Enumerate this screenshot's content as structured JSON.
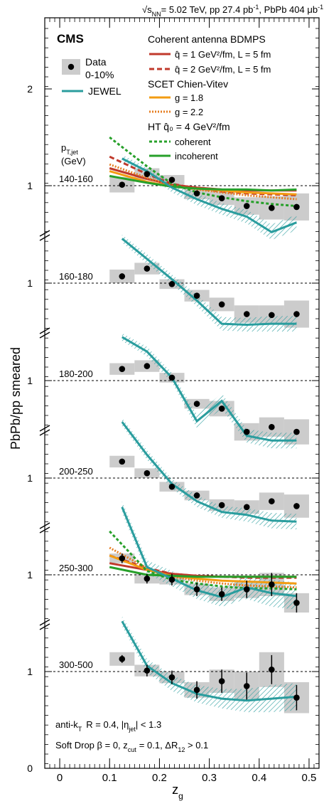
{
  "chart_data": {
    "type": "line",
    "energy_label": "= 5.02 TeV, pp 27.4 pb",
    "energy_root": "s",
    "energy_sub": "NN",
    "energy_sup": "-1",
    "lumi_label": ", PbPb 404 μb",
    "lumi_sup": "-1",
    "experiment": "CMS",
    "xlabel": "z",
    "xlabel_sub": "g",
    "ylabel": "PbPb/pp smeared",
    "xlim": [
      -0.03,
      0.52
    ],
    "x_ticks": [
      "0",
      "0.1",
      "0.2",
      "0.3",
      "0.4",
      "0.5"
    ],
    "y_ticks_left": [
      "0",
      "1",
      "1",
      "1",
      "1",
      "1",
      "1",
      "2"
    ],
    "pt_header": "p",
    "pt_header_sub": "T,jet",
    "pt_unit": "(GeV)",
    "jet_info": "anti-k",
    "jet_info_sub": "T",
    "jet_info_rest": "R = 0.4,  |η",
    "jet_info_sub2": "jet",
    "jet_info_end": "| < 1.3",
    "softdrop": "Soft Drop  β = 0,  z",
    "softdrop_sub": "cut",
    "softdrop_rest": "= 0.1,  ΔR",
    "softdrop_sub2": "12",
    "softdrop_end": " > 0.1",
    "legend": {
      "data_label": "Data",
      "data_sublabel": "0-10%",
      "jewel": "JEWEL",
      "coherent_title": "Coherent antenna BDMPS",
      "bdmps1": "q̂ = 1 GeV²/fm, L = 5 fm",
      "bdmps2": "q̂ = 2 GeV²/fm, L = 5 fm",
      "scet_title": "SCET Chien-Vitev",
      "scet1": "g = 1.8",
      "scet2": "g = 2.2",
      "ht_title": "HT q̂₀ = 4 GeV²/fm",
      "ht1": "coherent",
      "ht2": "incoherent"
    },
    "colors": {
      "data": "#000000",
      "syst_box": "#cccccc",
      "jewel": "#2a9d9e",
      "bdmps": "#c0392b",
      "scet": "#f39c12",
      "ht": "#27a02a"
    },
    "x_centers": [
      0.125,
      0.175,
      0.225,
      0.275,
      0.325,
      0.375,
      0.425,
      0.475
    ],
    "panels": [
      {
        "label": "140-160",
        "y_ref": 1,
        "data": [
          1.01,
          1.12,
          1.06,
          0.92,
          0.87,
          0.79,
          0.77,
          0.78
        ],
        "stat": [
          0.03,
          0.03,
          0.03,
          0.03,
          0.03,
          0.03,
          0.03,
          0.03
        ],
        "syst": [
          0.08,
          0.06,
          0.05,
          0.06,
          0.07,
          0.09,
          0.12,
          0.14
        ],
        "jewel": [
          1.28,
          1.15,
          0.98,
          0.86,
          0.76,
          0.68,
          0.52,
          0.62
        ],
        "jewel_band": [
          0.04,
          0.04,
          0.05,
          0.06,
          0.06,
          0.07,
          0.08,
          0.08
        ],
        "bdmps1": [
          1.18,
          1.07,
          1.01,
          0.98,
          0.96,
          0.95,
          0.95,
          0.95
        ],
        "bdmps2": [
          1.3,
          1.12,
          1.02,
          0.97,
          0.94,
          0.92,
          0.91,
          0.9
        ],
        "scet1": [
          1.15,
          1.04,
          0.99,
          0.97,
          0.95,
          0.93,
          0.92,
          0.91
        ],
        "scet2": [
          1.22,
          1.08,
          1.0,
          0.96,
          0.93,
          0.9,
          0.88,
          0.86
        ],
        "ht1": [
          1.5,
          1.2,
          1.02,
          0.93,
          0.88,
          0.84,
          0.81,
          0.79
        ],
        "ht2": [
          1.1,
          1.03,
          0.99,
          0.97,
          0.96,
          0.96,
          0.95,
          0.96
        ]
      },
      {
        "label": "160-180",
        "y_ref": 1,
        "data": [
          1.07,
          1.15,
          0.99,
          0.87,
          0.78,
          0.68,
          0.67,
          0.68
        ],
        "stat": [
          0.03,
          0.03,
          0.03,
          0.03,
          0.03,
          0.03,
          0.03,
          0.03
        ],
        "syst": [
          0.07,
          0.06,
          0.05,
          0.06,
          0.07,
          0.09,
          0.1,
          0.14
        ],
        "jewel": [
          1.46,
          1.25,
          1.04,
          0.82,
          0.58,
          0.57,
          0.58,
          0.58
        ],
        "jewel_band": [
          0.04,
          0.05,
          0.05,
          0.06,
          0.07,
          0.07,
          0.08,
          0.08
        ]
      },
      {
        "label": "180-200",
        "y_ref": 1,
        "data": [
          1.12,
          1.15,
          1.03,
          0.76,
          0.71,
          0.47,
          0.52,
          0.47
        ],
        "stat": [
          0.03,
          0.03,
          0.03,
          0.03,
          0.03,
          0.03,
          0.03,
          0.03
        ],
        "syst": [
          0.06,
          0.06,
          0.05,
          0.05,
          0.08,
          0.09,
          0.1,
          0.13
        ],
        "jewel": [
          1.45,
          1.3,
          1.03,
          0.58,
          0.79,
          0.43,
          0.38,
          0.38
        ],
        "jewel_band": [
          0.04,
          0.05,
          0.05,
          0.07,
          0.08,
          0.07,
          0.08,
          0.08
        ]
      },
      {
        "label": "200-250",
        "y_ref": 1,
        "data": [
          1.17,
          1.05,
          0.91,
          0.82,
          0.72,
          0.7,
          0.76,
          0.71
        ],
        "stat": [
          0.03,
          0.03,
          0.03,
          0.03,
          0.03,
          0.03,
          0.03,
          0.03
        ],
        "syst": [
          0.06,
          0.05,
          0.05,
          0.05,
          0.06,
          0.07,
          0.09,
          0.12
        ],
        "jewel": [
          1.58,
          1.24,
          0.94,
          0.76,
          0.65,
          0.62,
          0.56,
          0.55
        ],
        "jewel_band": [
          0.04,
          0.05,
          0.05,
          0.06,
          0.06,
          0.07,
          0.08,
          0.08
        ]
      },
      {
        "label": "250-300",
        "y_ref": 1,
        "data": [
          1.17,
          0.96,
          0.95,
          0.85,
          0.8,
          0.85,
          0.9,
          0.71
        ],
        "stat": [
          0.05,
          0.05,
          0.06,
          0.07,
          0.07,
          0.09,
          0.12,
          0.1
        ],
        "syst": [
          0.05,
          0.05,
          0.05,
          0.06,
          0.07,
          0.09,
          0.12,
          0.1
        ],
        "jewel": [
          1.7,
          1.08,
          0.96,
          0.84,
          0.77,
          0.87,
          0.81,
          0.78
        ],
        "jewel_band": [
          0.06,
          0.07,
          0.08,
          0.09,
          0.1,
          0.12,
          0.14,
          0.14
        ],
        "bdmps1": [
          1.12,
          1.05,
          1.01,
          0.99,
          0.98,
          0.98,
          0.98,
          0.98
        ],
        "bdmps2": [
          1.2,
          1.07,
          1.01,
          0.99,
          0.98,
          0.97,
          0.97,
          0.97
        ],
        "scet1": [
          1.2,
          1.05,
          0.99,
          0.96,
          0.94,
          0.93,
          0.92,
          0.91
        ],
        "scet2": [
          1.28,
          1.07,
          0.98,
          0.94,
          0.91,
          0.89,
          0.88,
          0.87
        ],
        "ht1": [
          1.45,
          1.04,
          0.95,
          0.91,
          0.88,
          0.86,
          0.86,
          0.85
        ],
        "ht2": [
          1.08,
          1.0,
          0.99,
          0.98,
          0.98,
          0.98,
          0.98,
          0.98
        ]
      },
      {
        "label": "300-500",
        "y_ref": 1,
        "data": [
          1.13,
          1.01,
          0.94,
          0.81,
          0.9,
          0.85,
          1.02,
          0.73
        ],
        "stat": [
          0.04,
          0.06,
          0.07,
          0.09,
          0.12,
          0.14,
          0.15,
          0.13
        ],
        "syst": [
          0.07,
          0.06,
          0.06,
          0.08,
          0.12,
          0.15,
          0.18,
          0.16
        ],
        "jewel": [
          1.52,
          1.06,
          0.88,
          0.77,
          0.72,
          0.7,
          0.72,
          0.74
        ],
        "jewel_band": [
          0.05,
          0.07,
          0.08,
          0.09,
          0.1,
          0.12,
          0.14,
          0.14
        ]
      }
    ]
  }
}
